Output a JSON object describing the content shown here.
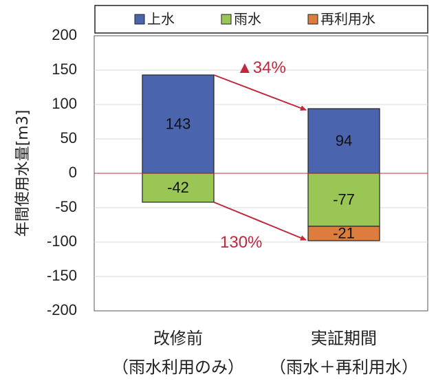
{
  "chart_data": {
    "type": "bar",
    "stacked": true,
    "categories": [
      [
        "改修前",
        "（雨水利用のみ）"
      ],
      [
        "実証期間",
        "（雨水＋再利用水）"
      ]
    ],
    "series": [
      {
        "name": "上水",
        "values": [
          143,
          94
        ]
      },
      {
        "name": "雨水",
        "values": [
          -42,
          -77
        ]
      },
      {
        "name": "再利用水",
        "values": [
          0,
          -21
        ]
      }
    ],
    "data_labels": [
      [
        "143",
        "-42",
        ""
      ],
      [
        "94",
        "-77",
        "-21"
      ]
    ],
    "ylabel": "年間使用水量[m3]",
    "ylim": [
      -200,
      200
    ],
    "yticks": [
      200,
      150,
      100,
      50,
      0,
      -50,
      -100,
      -150,
      -200
    ],
    "ytick_labels": [
      "200",
      "150",
      "100",
      "50",
      "0",
      "-50",
      "-100",
      "-150",
      "-200"
    ],
    "legend_position": "top",
    "annotations": [
      {
        "text": "▲34%",
        "from": "top of 改修前 bar",
        "to": "top of 実証期間 bar"
      },
      {
        "text": "130%",
        "from": "bottom of 改修前 bar",
        "to": "bottom of 実証期間 bar"
      }
    ],
    "colors": {
      "上水": "#4a64ad",
      "雨水": "#9ac655",
      "再利用水": "#dc7d3e",
      "zero_line": "#c0283c",
      "arrow": "#c0283c"
    }
  }
}
